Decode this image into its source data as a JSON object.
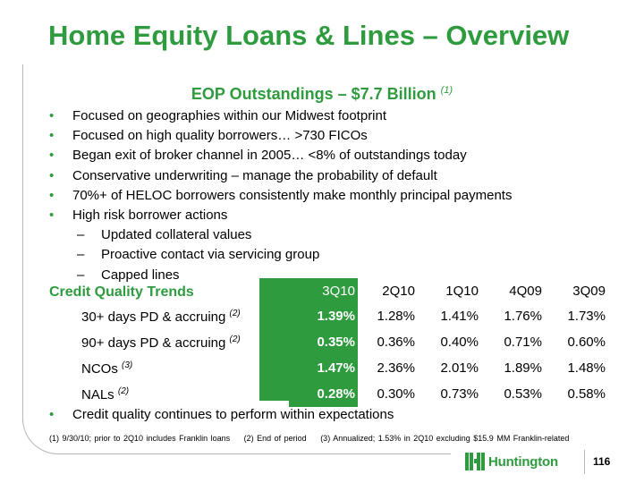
{
  "title": "Home Equity Loans & Lines – Overview",
  "subtitle": {
    "text": "EOP Outstandings – $7.7 Billion",
    "note": "(1)"
  },
  "bullets": [
    {
      "text": "Focused on geographies within our Midwest footprint",
      "level": 1
    },
    {
      "text": "Focused on high quality borrowers… >730 FICOs",
      "level": 1
    },
    {
      "text": "Began exit of broker channel in 2005… <8% of outstandings today",
      "level": 1
    },
    {
      "text": "Conservative underwriting – manage the probability of default",
      "level": 1
    },
    {
      "text": "70%+ of HELOC borrowers consistently make monthly principal payments",
      "level": 1
    },
    {
      "text": "High risk borrower actions",
      "level": 1
    },
    {
      "text": "Updated collateral values",
      "level": 2
    },
    {
      "text": "Proactive contact via servicing group",
      "level": 2
    },
    {
      "text": "Capped lines",
      "level": 2
    }
  ],
  "markers": {
    "bullet": "•",
    "dash": "–"
  },
  "credit_quality": {
    "heading": "Credit Quality Trends",
    "columns": [
      "3Q10",
      "2Q10",
      "1Q10",
      "4Q09",
      "3Q09"
    ],
    "rows": [
      {
        "label": "30+ days PD & accruing",
        "note": "(2)",
        "values": [
          "1.39%",
          "1.28%",
          "1.41%",
          "1.76%",
          "1.73%"
        ]
      },
      {
        "label": "90+ days PD & accruing",
        "note": "(2)",
        "values": [
          "0.35%",
          "0.36%",
          "0.40%",
          "0.71%",
          "0.60%"
        ]
      },
      {
        "label": "NCOs",
        "note": "(3)",
        "values": [
          "1.47%",
          "2.36%",
          "2.01%",
          "1.89%",
          "1.48%"
        ]
      },
      {
        "label": "NALs",
        "note": "(2)",
        "values": [
          "0.28%",
          "0.30%",
          "0.73%",
          "0.53%",
          "0.58%"
        ]
      }
    ]
  },
  "closing_bullet": "Credit quality continues to perform within expectations",
  "footnotes": [
    "(1)  9/30/10; prior to 2Q10 includes Franklin loans",
    "(2)  End of period",
    "(3)  Annualized; 1.53% in 2Q10 excluding $15.9 MM Franklin-related"
  ],
  "logo": {
    "text": "Huntington",
    "icon": "huntington-logo-icon"
  },
  "page_number": "116",
  "colors": {
    "accent": "#2e9b3e",
    "text": "#000000",
    "frame": "#b8b8b8"
  }
}
